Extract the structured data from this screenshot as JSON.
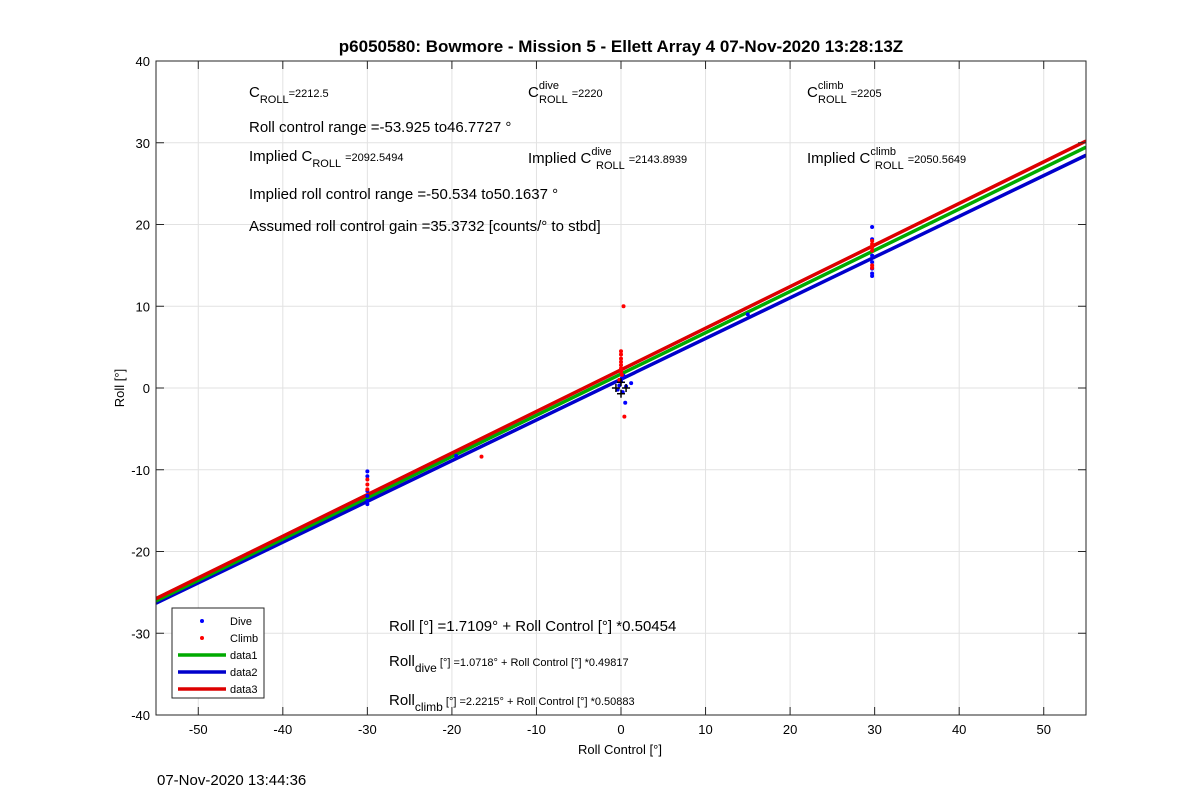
{
  "chart_data": {
    "type": "scatter",
    "title": "p6050580: Bowmore - Mission 5 - Ellett Array 4 07-Nov-2020 13:28:13Z",
    "xlabel": "Roll Control [°]",
    "ylabel": "Roll [°]",
    "xlim": [
      -55,
      55
    ],
    "ylim": [
      -40,
      40
    ],
    "xticks": [
      -50,
      -40,
      -30,
      -20,
      -10,
      0,
      10,
      20,
      30,
      40,
      50
    ],
    "yticks": [
      -40,
      -30,
      -20,
      -10,
      0,
      10,
      20,
      30,
      40
    ],
    "grid": true,
    "legend_position": "bottom-left",
    "colors": {
      "dive": "#0000ff",
      "climb": "#ff0000",
      "data1": "#00aa00",
      "data2": "#0000cc",
      "data3": "#dd0000",
      "marker": "#000000"
    },
    "series": [
      {
        "name": "Dive",
        "kind": "points",
        "points": [
          [
            -30,
            -10.2
          ],
          [
            -30,
            -10.8
          ],
          [
            -30,
            -12.6
          ],
          [
            -30,
            -13.2
          ],
          [
            -30,
            -13.8
          ],
          [
            -30,
            -14.2
          ],
          [
            -19.5,
            -8.3
          ],
          [
            -0.4,
            -0.2
          ],
          [
            -0.2,
            0.3
          ],
          [
            0,
            0.8
          ],
          [
            0.1,
            1.2
          ],
          [
            0.2,
            -0.5
          ],
          [
            0.3,
            1.5
          ],
          [
            0.5,
            -1.8
          ],
          [
            1.2,
            0.6
          ],
          [
            0.6,
            0.2
          ],
          [
            15,
            9.0
          ],
          [
            29.7,
            19.7
          ],
          [
            29.7,
            18.2
          ],
          [
            29.7,
            16.2
          ],
          [
            29.7,
            15.4
          ],
          [
            29.7,
            14.6
          ],
          [
            29.7,
            14.0
          ],
          [
            29.7,
            13.7
          ]
        ]
      },
      {
        "name": "Climb",
        "kind": "points",
        "points": [
          [
            -30,
            -11.2
          ],
          [
            -30,
            -11.8
          ],
          [
            -30,
            -12.4
          ],
          [
            -16.5,
            -8.4
          ],
          [
            0,
            4.5
          ],
          [
            0,
            4.1
          ],
          [
            0,
            3.6
          ],
          [
            0,
            3.2
          ],
          [
            0,
            2.8
          ],
          [
            0,
            2.4
          ],
          [
            0,
            2.0
          ],
          [
            0.1,
            1.6
          ],
          [
            0.3,
            10.0
          ],
          [
            0.4,
            -3.5
          ],
          [
            -0.2,
            1.0
          ],
          [
            29.7,
            18.0
          ],
          [
            29.7,
            17.6
          ],
          [
            29.7,
            17.2
          ],
          [
            29.7,
            16.8
          ],
          [
            29.7,
            15.0
          ],
          [
            29.7,
            14.7
          ]
        ]
      },
      {
        "name": "data1",
        "kind": "line",
        "intercept": 1.7109,
        "slope": 0.50454
      },
      {
        "name": "data2",
        "kind": "line",
        "intercept": 1.0718,
        "slope": 0.49817
      },
      {
        "name": "data3",
        "kind": "line",
        "intercept": 2.2215,
        "slope": 0.50883
      }
    ],
    "black_markers": [
      [
        -0.6,
        0
      ],
      [
        0.6,
        0
      ],
      [
        0,
        0.7
      ],
      [
        0,
        -0.7
      ]
    ],
    "annotations": {
      "c_roll_base": "C",
      "c_roll_sub": "ROLL",
      "c_roll_value": "=2212.5",
      "c_dive_sup": "dive",
      "c_dive_value": "=2220",
      "c_climb_sup": "climb",
      "c_climb_value": "=2205",
      "roll_control_range": "Roll control range =-53.925 to46.7727 °",
      "implied_prefix": "Implied C",
      "implied_c_roll_value": "=2092.5494",
      "implied_c_dive_value": "=2143.8939",
      "implied_c_climb_value": "=2050.5649",
      "implied_roll_range": "Implied roll control range =-50.534 to50.1637 °",
      "assumed_gain": "Assumed roll control gain =35.3732 [counts/° to stbd]",
      "fit_all": "Roll [°] =1.7109° + Roll Control [°] *0.50454",
      "fit_dive_base": "Roll",
      "fit_dive_sub": "dive",
      "fit_dive_rest": " [°] =1.0718° + Roll Control [°] *0.49817",
      "fit_climb_base": "Roll",
      "fit_climb_sub": "climb",
      "fit_climb_rest": " [°] =2.2215° + Roll Control [°] *0.50883"
    }
  },
  "footer": {
    "timestamp": "07-Nov-2020 13:44:36"
  }
}
